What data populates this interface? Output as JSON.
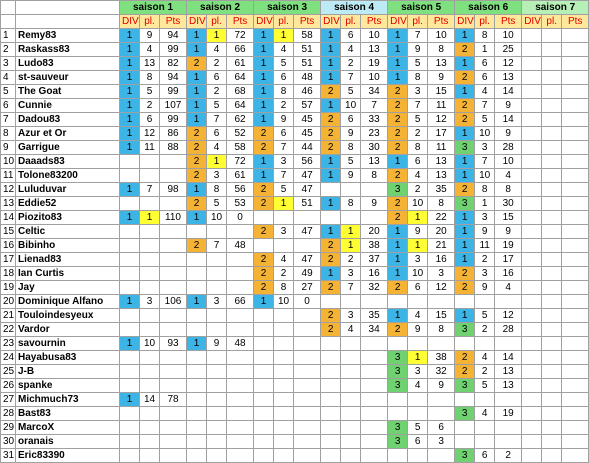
{
  "table": {
    "seasons": [
      "saison 1",
      "saison 2",
      "saison 3",
      "saison 4",
      "saison 5",
      "saison 6",
      "saison 7"
    ],
    "season_colors": [
      "#7ee07e",
      "#7ee07e",
      "#7ee07e",
      "#bdebf5",
      "#7ee07e",
      "#7ee07e",
      "#b6f0b6"
    ],
    "subheaders": [
      "DIV",
      "pl.",
      "Pts"
    ],
    "div_colors": {
      "1": "#3cb4e6",
      "2": "#f5b335",
      "3": "#6fd16f"
    },
    "highlight_color": "#ffff33",
    "rows": [
      {
        "n": "1",
        "name": "Remy83",
        "seasons": [
          [
            1,
            9,
            94
          ],
          [
            1,
            1,
            72
          ],
          [
            1,
            1,
            58
          ],
          [
            1,
            6,
            10
          ],
          [
            1,
            7,
            10
          ],
          [
            1,
            8,
            10
          ]
        ]
      },
      {
        "n": "2",
        "name": "Raskass83",
        "seasons": [
          [
            1,
            4,
            99
          ],
          [
            1,
            4,
            66
          ],
          [
            1,
            4,
            51
          ],
          [
            1,
            4,
            13
          ],
          [
            1,
            9,
            8
          ],
          [
            2,
            1,
            25
          ]
        ]
      },
      {
        "n": "3",
        "name": "Ludo83",
        "seasons": [
          [
            1,
            13,
            82
          ],
          [
            2,
            2,
            61
          ],
          [
            1,
            5,
            51
          ],
          [
            1,
            2,
            19
          ],
          [
            1,
            5,
            13
          ],
          [
            1,
            6,
            12
          ]
        ]
      },
      {
        "n": "4",
        "name": "st-sauveur",
        "seasons": [
          [
            1,
            8,
            94
          ],
          [
            1,
            6,
            64
          ],
          [
            1,
            6,
            48
          ],
          [
            1,
            7,
            10
          ],
          [
            1,
            8,
            9
          ],
          [
            2,
            6,
            13
          ]
        ]
      },
      {
        "n": "5",
        "name": "The Goat",
        "seasons": [
          [
            1,
            5,
            99
          ],
          [
            1,
            2,
            68
          ],
          [
            1,
            8,
            46
          ],
          [
            2,
            5,
            34
          ],
          [
            2,
            3,
            15
          ],
          [
            1,
            4,
            14
          ]
        ]
      },
      {
        "n": "6",
        "name": "Cunnie",
        "seasons": [
          [
            1,
            2,
            107
          ],
          [
            1,
            5,
            64
          ],
          [
            1,
            2,
            57
          ],
          [
            1,
            10,
            7
          ],
          [
            2,
            7,
            11
          ],
          [
            2,
            7,
            9
          ]
        ]
      },
      {
        "n": "7",
        "name": "Dadou83",
        "seasons": [
          [
            1,
            6,
            99
          ],
          [
            1,
            7,
            62
          ],
          [
            1,
            9,
            45
          ],
          [
            2,
            6,
            33
          ],
          [
            2,
            5,
            12
          ],
          [
            2,
            5,
            14
          ]
        ]
      },
      {
        "n": "8",
        "name": "Azur et Or",
        "seasons": [
          [
            1,
            12,
            86
          ],
          [
            2,
            6,
            52
          ],
          [
            2,
            6,
            45
          ],
          [
            2,
            9,
            23
          ],
          [
            2,
            2,
            17
          ],
          [
            1,
            10,
            9
          ]
        ]
      },
      {
        "n": "9",
        "name": "Garrigue",
        "seasons": [
          [
            1,
            11,
            88
          ],
          [
            2,
            4,
            58
          ],
          [
            2,
            7,
            44
          ],
          [
            2,
            8,
            30
          ],
          [
            2,
            8,
            11
          ],
          [
            3,
            3,
            28
          ]
        ]
      },
      {
        "n": "10",
        "name": "Daaads83",
        "seasons": [
          null,
          [
            2,
            1,
            72
          ],
          [
            1,
            3,
            56
          ],
          [
            1,
            5,
            13
          ],
          [
            1,
            6,
            13
          ],
          [
            1,
            7,
            10
          ]
        ]
      },
      {
        "n": "11",
        "name": "Tolone83200",
        "seasons": [
          null,
          [
            2,
            3,
            61
          ],
          [
            1,
            7,
            47
          ],
          [
            1,
            9,
            8
          ],
          [
            2,
            4,
            13
          ],
          [
            1,
            10,
            4
          ]
        ]
      },
      {
        "n": "12",
        "name": "Luluduvar",
        "seasons": [
          [
            1,
            7,
            98
          ],
          [
            1,
            8,
            56
          ],
          [
            2,
            5,
            47
          ],
          null,
          [
            3,
            2,
            35
          ],
          [
            2,
            8,
            8
          ]
        ]
      },
      {
        "n": "13",
        "name": "Eddie52",
        "seasons": [
          null,
          [
            2,
            5,
            53
          ],
          [
            2,
            1,
            51
          ],
          [
            1,
            8,
            9
          ],
          [
            2,
            10,
            8
          ],
          [
            3,
            1,
            30
          ]
        ]
      },
      {
        "n": "14",
        "name": "Piozito83",
        "seasons": [
          [
            1,
            1,
            110
          ],
          [
            1,
            10,
            0
          ],
          null,
          null,
          [
            2,
            1,
            22
          ],
          [
            1,
            3,
            15
          ]
        ]
      },
      {
        "n": "15",
        "name": "Celtic",
        "seasons": [
          null,
          null,
          [
            2,
            3,
            47
          ],
          [
            1,
            1,
            20
          ],
          [
            1,
            9,
            20
          ],
          [
            1,
            9,
            9
          ]
        ]
      },
      {
        "n": "16",
        "name": "Bibinho",
        "seasons": [
          null,
          [
            2,
            7,
            48
          ],
          null,
          [
            2,
            1,
            38
          ],
          [
            1,
            1,
            21
          ],
          [
            1,
            11,
            19
          ]
        ]
      },
      {
        "n": "17",
        "name": "Lienad83",
        "seasons": [
          null,
          null,
          [
            2,
            4,
            47
          ],
          [
            2,
            2,
            37
          ],
          [
            1,
            3,
            16
          ],
          [
            1,
            2,
            17
          ]
        ]
      },
      {
        "n": "18",
        "name": "Ian Curtis",
        "seasons": [
          null,
          null,
          [
            2,
            2,
            49
          ],
          [
            1,
            3,
            16
          ],
          [
            1,
            10,
            3
          ],
          [
            2,
            3,
            16
          ]
        ]
      },
      {
        "n": "19",
        "name": "Jay",
        "seasons": [
          null,
          null,
          [
            2,
            8,
            27
          ],
          [
            2,
            7,
            32
          ],
          [
            2,
            6,
            12
          ],
          [
            2,
            9,
            4
          ]
        ]
      },
      {
        "n": "20",
        "name": "Dominique Alfano",
        "seasons": [
          [
            1,
            3,
            106
          ],
          [
            1,
            3,
            66
          ],
          [
            1,
            10,
            0
          ],
          null,
          null,
          null
        ]
      },
      {
        "n": "21",
        "name": "Touloindesyeux",
        "seasons": [
          null,
          null,
          null,
          [
            2,
            3,
            35
          ],
          [
            1,
            4,
            15
          ],
          [
            1,
            5,
            12
          ]
        ]
      },
      {
        "n": "22",
        "name": "Vardor",
        "seasons": [
          null,
          null,
          null,
          [
            2,
            4,
            34
          ],
          [
            2,
            9,
            8
          ],
          [
            3,
            2,
            28
          ]
        ]
      },
      {
        "n": "23",
        "name": "savournin",
        "seasons": [
          [
            1,
            10,
            93
          ],
          [
            1,
            9,
            48
          ],
          null,
          null,
          null,
          null
        ]
      },
      {
        "n": "24",
        "name": "Hayabusa83",
        "seasons": [
          null,
          null,
          null,
          null,
          [
            3,
            1,
            38
          ],
          [
            2,
            4,
            14
          ]
        ]
      },
      {
        "n": "25",
        "name": "J-B",
        "seasons": [
          null,
          null,
          null,
          null,
          [
            3,
            3,
            32
          ],
          [
            2,
            2,
            13
          ]
        ]
      },
      {
        "n": "26",
        "name": "spanke",
        "seasons": [
          null,
          null,
          null,
          null,
          [
            3,
            4,
            9
          ],
          [
            3,
            5,
            13
          ]
        ]
      },
      {
        "n": "27",
        "name": "Michmuch73",
        "seasons": [
          [
            1,
            14,
            78
          ],
          null,
          null,
          null,
          null,
          null
        ]
      },
      {
        "n": "28",
        "name": "Bast83",
        "seasons": [
          null,
          null,
          null,
          null,
          null,
          [
            3,
            4,
            19
          ]
        ]
      },
      {
        "n": "29",
        "name": "MarcoX",
        "seasons": [
          null,
          null,
          null,
          null,
          [
            3,
            5,
            6
          ],
          null
        ]
      },
      {
        "n": "30",
        "name": "oranais",
        "seasons": [
          null,
          null,
          null,
          null,
          [
            3,
            6,
            3
          ],
          null
        ]
      },
      {
        "n": "31",
        "name": "Eric83390",
        "seasons": [
          null,
          null,
          null,
          null,
          null,
          [
            3,
            6,
            2
          ]
        ]
      }
    ]
  }
}
